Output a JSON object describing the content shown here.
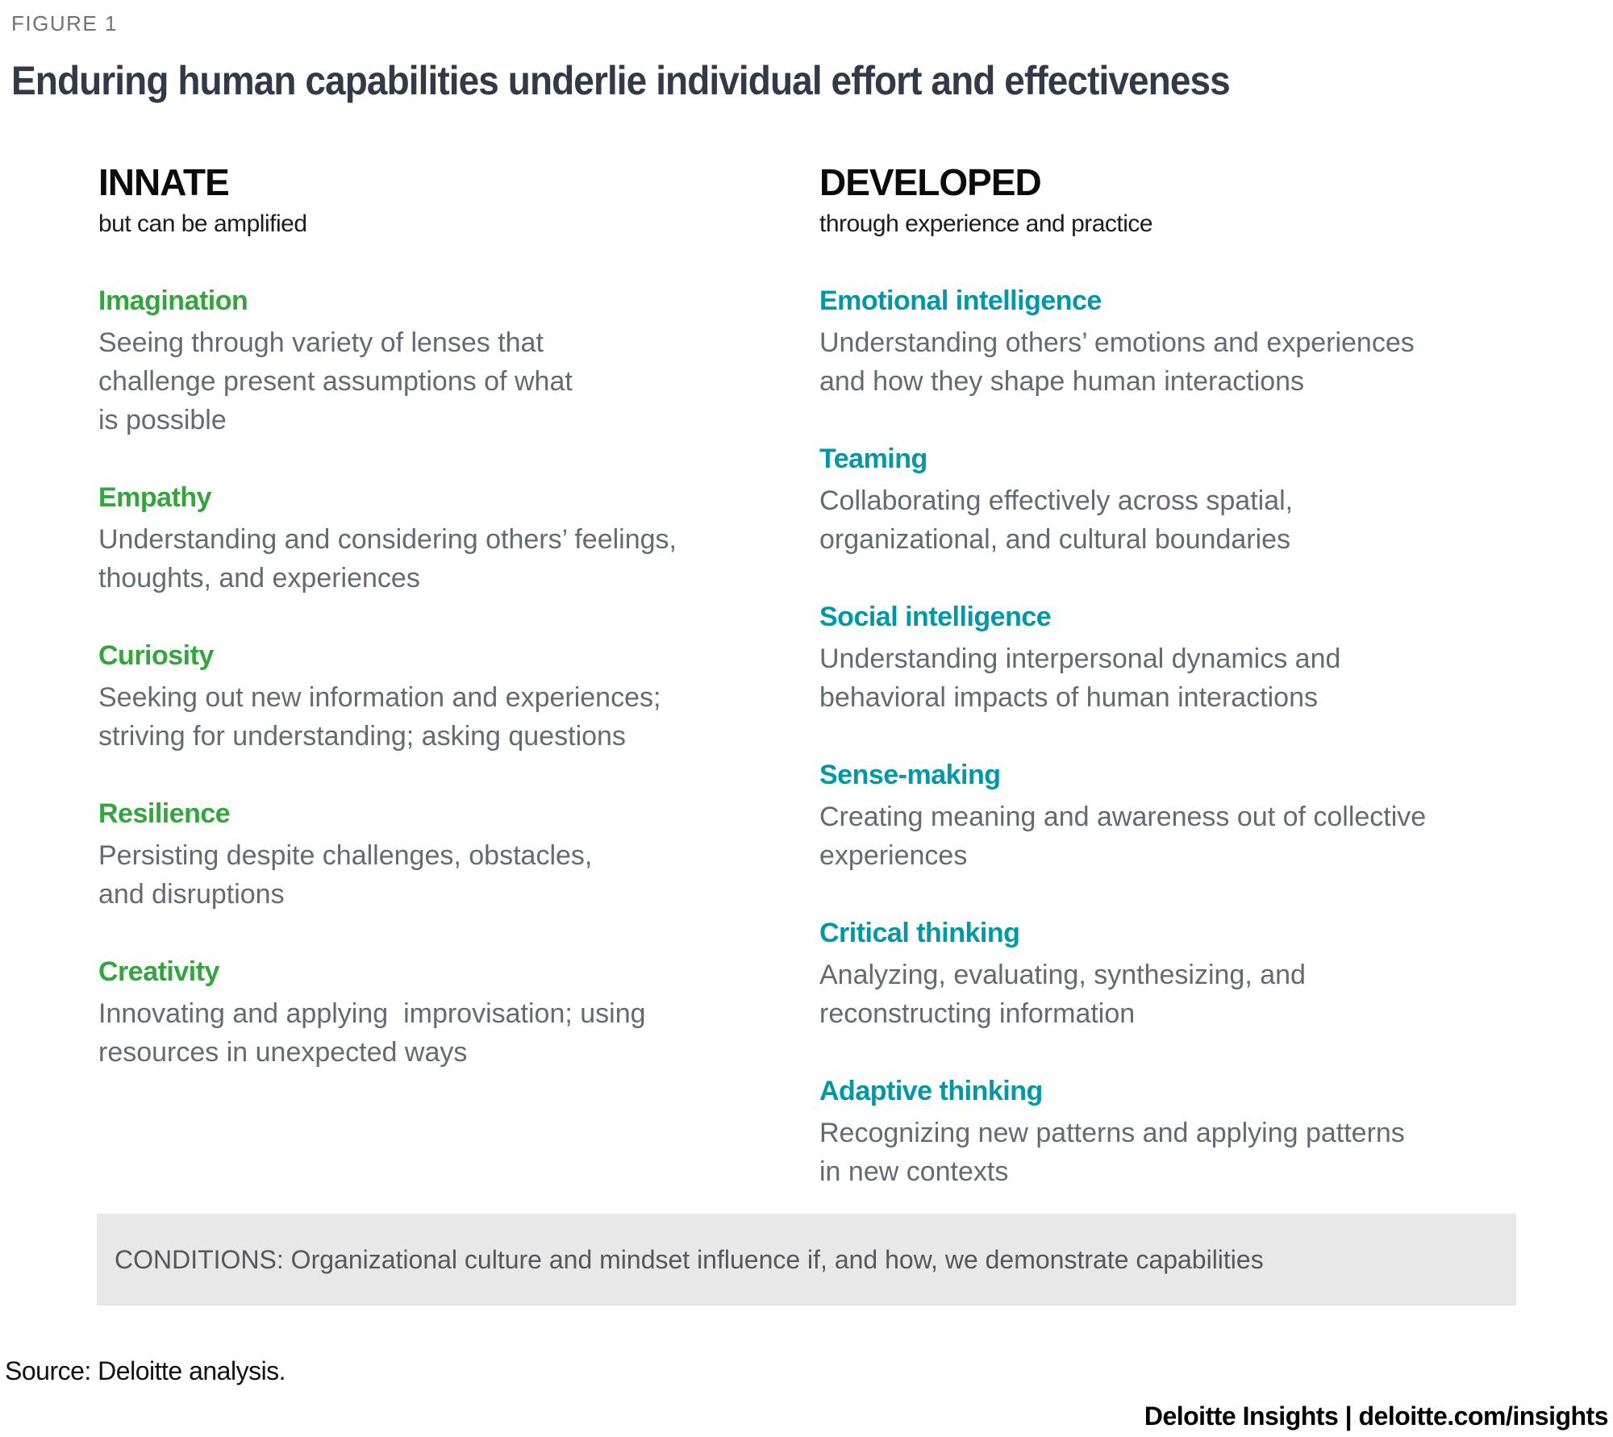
{
  "figure_label": "FIGURE 1",
  "title": "Enduring human capabilities underlie individual effort and effectiveness",
  "columns": [
    {
      "heading": "INNATE",
      "subheading": "but can be amplified",
      "accent_color": "#34A53C",
      "items": [
        {
          "name": "Imagination",
          "description": "Seeing through variety of lenses that\nchallenge present assumptions of what\nis possible"
        },
        {
          "name": "Empathy",
          "description": "Understanding and considering others’ feelings,\nthoughts, and experiences"
        },
        {
          "name": "Curiosity",
          "description": "Seeking out new information and experiences;\nstriving for understanding; asking questions"
        },
        {
          "name": "Resilience",
          "description": "Persisting despite challenges, obstacles,\nand disruptions"
        },
        {
          "name": "Creativity",
          "description": "Innovating and applying  improvisation; using\nresources in unexpected ways"
        }
      ]
    },
    {
      "heading": "DEVELOPED",
      "subheading": "through experience and practice",
      "accent_color": "#0098A9",
      "items": [
        {
          "name": "Emotional intelligence",
          "description": "Understanding others’ emotions and experiences\nand how they shape human interactions"
        },
        {
          "name": "Teaming",
          "description": "Collaborating effectively across spatial,\norganizational, and cultural boundaries"
        },
        {
          "name": "Social intelligence",
          "description": "Understanding interpersonal dynamics and\nbehavioral impacts of human interactions"
        },
        {
          "name": "Sense-making",
          "description": "Creating meaning and awareness out of collective\nexperiences"
        },
        {
          "name": "Critical thinking",
          "description": "Analyzing, evaluating, synthesizing, and\nreconstructing information"
        },
        {
          "name": "Adaptive thinking",
          "description": "Recognizing new patterns and applying patterns\nin new contexts"
        }
      ]
    }
  ],
  "conditions_text": "CONDITIONS: Organizational culture and mindset influence if, and how, we demonstrate capabilities",
  "source_text": "Source: Deloitte analysis.",
  "footer_text": "Deloitte Insights | deloitte.com/insights"
}
